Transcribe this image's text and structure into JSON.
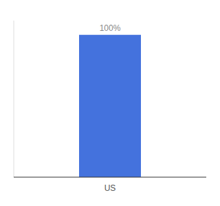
{
  "chart_data": {
    "type": "bar",
    "categories": [
      "US"
    ],
    "values": [
      100
    ],
    "value_labels": [
      "100%"
    ],
    "color": "#4472DD",
    "ylim": [
      0,
      110
    ],
    "data_labels": true,
    "tick_labels": "x"
  }
}
